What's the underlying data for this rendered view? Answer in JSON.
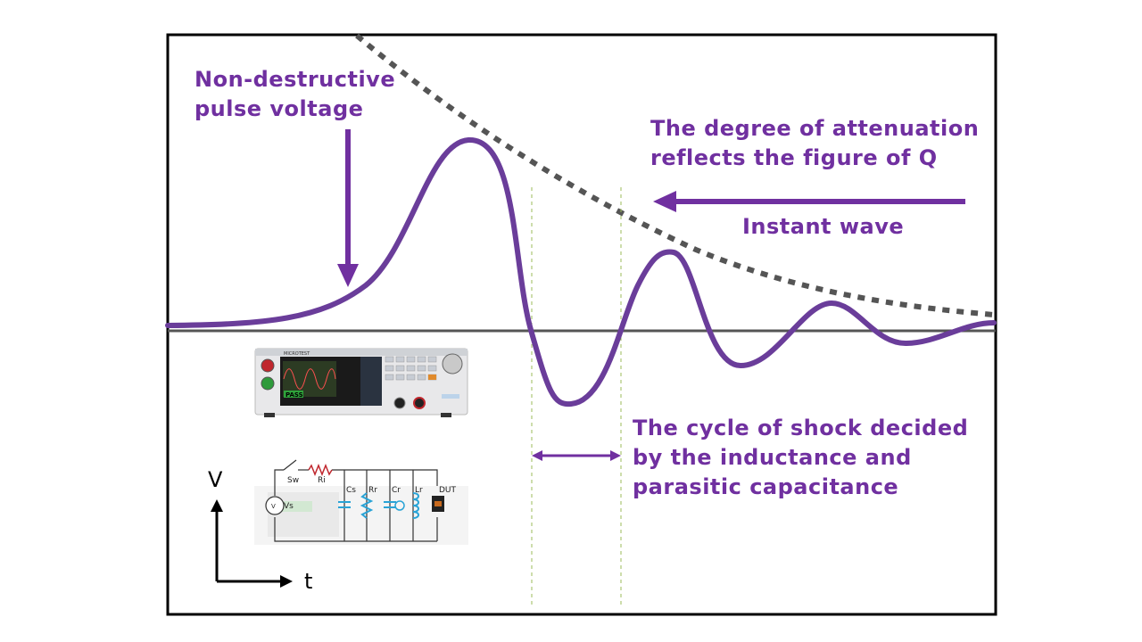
{
  "annotations": {
    "pulse": [
      "Non-destructive",
      "pulse voltage"
    ],
    "attenuation": [
      "The degree of attenuation",
      "reflects the figure of Q"
    ],
    "instant_wave": "Instant wave",
    "cycle": [
      "The cycle of shock decided",
      "by the inductance and",
      "parasitic capacitance"
    ]
  },
  "axes": {
    "y": "V",
    "x": "t"
  },
  "device": {
    "brand": "MICROTEST",
    "result": "PASS"
  },
  "circuit": {
    "labels": {
      "switch": "Sw",
      "resistor": "Ri",
      "source": "Vs",
      "source_symbol": "V",
      "cs": "Cs",
      "rr": "Rr",
      "cr": "Cr",
      "lr": "Lr",
      "dut": "DUT"
    }
  },
  "colors": {
    "accent": "#7030a0",
    "envelope": "#555555",
    "axis": "#555555",
    "guide": "#9bbb59"
  }
}
